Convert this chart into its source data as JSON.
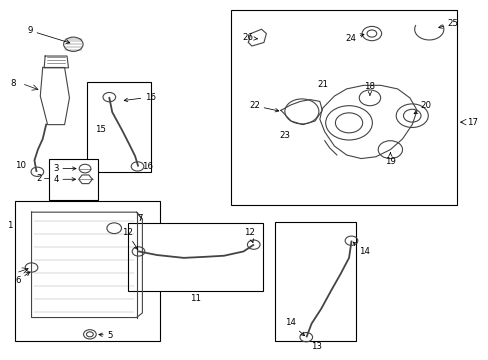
{
  "bg_color": "#ffffff",
  "line_color": "#000000",
  "part_color": "#444444",
  "fig_width": 4.89,
  "fig_height": 3.6,
  "dpi": 100
}
